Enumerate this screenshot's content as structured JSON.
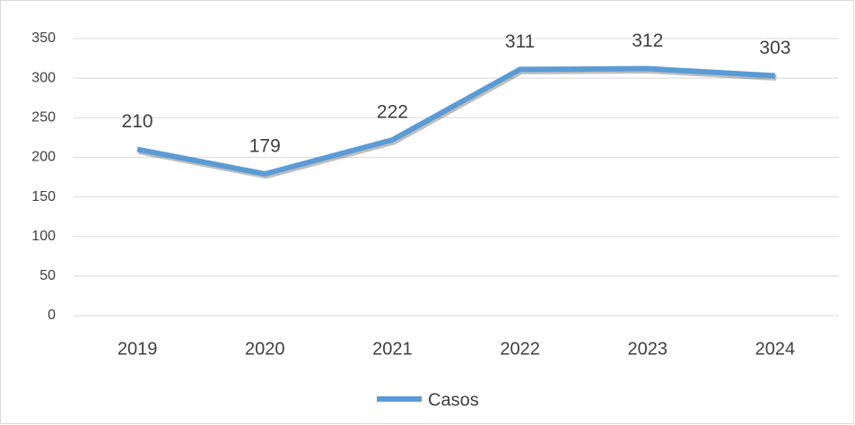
{
  "chart_data": {
    "type": "line",
    "categories": [
      "2019",
      "2020",
      "2021",
      "2022",
      "2023",
      "2024"
    ],
    "series": [
      {
        "name": "Casos",
        "color": "#5b9bd5",
        "values": [
          210,
          179,
          222,
          311,
          312,
          303
        ]
      }
    ],
    "ylim": [
      0,
      350
    ],
    "yticks": [
      0,
      50,
      100,
      150,
      200,
      250,
      300,
      350
    ],
    "grid": true,
    "legend": "bottom"
  }
}
